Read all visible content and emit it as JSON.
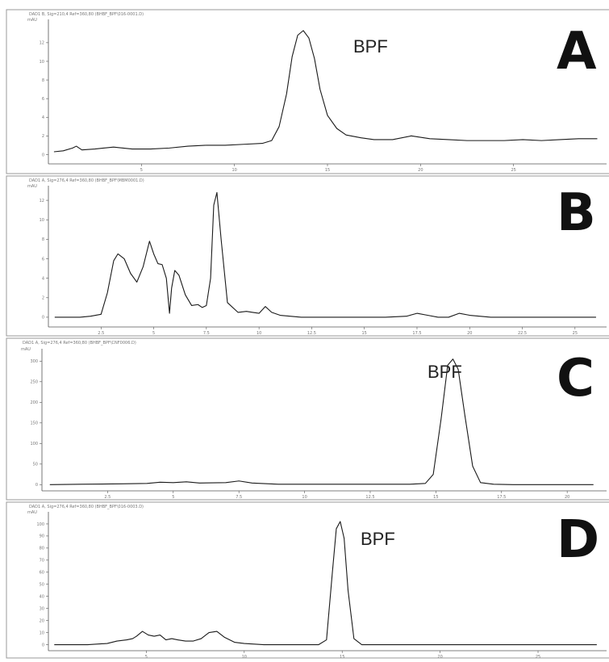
{
  "chart_data": [
    {
      "type": "line",
      "panel": "A",
      "header": "DAD1 B, Sig=210,4 Ref=360,80 (BHBF_BPF\\016-0001.D)",
      "ylabel": "mAU",
      "peak_label": "BPF",
      "peak_x": 13.7,
      "xlim": [
        0,
        30
      ],
      "ylim": [
        -1,
        14.5
      ],
      "xticks": [
        5,
        10,
        15,
        20,
        25
      ],
      "yticks": [
        0,
        2,
        4,
        6,
        8,
        10,
        12
      ],
      "series": [
        {
          "x": [
            0.3,
            0.8,
            1.3,
            1.5,
            1.8,
            2.5,
            3.5,
            4.5,
            5.5,
            6.5,
            7.5,
            8.5,
            9.5,
            10.5,
            11.5,
            12.0,
            12.4,
            12.8,
            13.1,
            13.4,
            13.7,
            14.0,
            14.3,
            14.6,
            15.0,
            15.5,
            16.0,
            16.8,
            17.5,
            18.5,
            19.5,
            20.5,
            21.5,
            22.5,
            23.5,
            24.5,
            25.5,
            26.5,
            27.5,
            28.5,
            29.5
          ],
          "y": [
            0.3,
            0.4,
            0.7,
            0.9,
            0.5,
            0.6,
            0.8,
            0.6,
            0.6,
            0.7,
            0.9,
            1.0,
            1.0,
            1.1,
            1.2,
            1.5,
            3.0,
            6.5,
            10.5,
            12.8,
            13.3,
            12.5,
            10.3,
            7.0,
            4.2,
            2.8,
            2.1,
            1.8,
            1.6,
            1.6,
            2.0,
            1.7,
            1.6,
            1.5,
            1.5,
            1.5,
            1.6,
            1.5,
            1.6,
            1.7,
            1.7
          ]
        }
      ]
    },
    {
      "type": "line",
      "panel": "B",
      "header": "DAD1 A, Sig=276,4 Ref=360,80 (BHBF_BPF\\MBM0001.D)",
      "ylabel": "mAU",
      "xlim": [
        0,
        26.5
      ],
      "ylim": [
        -1,
        13.5
      ],
      "xticks": [
        2.5,
        5,
        7.5,
        10,
        12.5,
        15,
        17.5,
        20,
        22.5,
        25
      ],
      "yticks": [
        0,
        2,
        4,
        6,
        8,
        10,
        12
      ],
      "series": [
        {
          "x": [
            0.3,
            1.0,
            1.5,
            2.0,
            2.5,
            2.8,
            3.1,
            3.3,
            3.6,
            3.9,
            4.2,
            4.5,
            4.8,
            5.0,
            5.2,
            5.4,
            5.6,
            5.75,
            5.85,
            6.0,
            6.2,
            6.5,
            6.8,
            7.1,
            7.3,
            7.5,
            7.7,
            7.85,
            8.0,
            8.2,
            8.5,
            9.0,
            9.4,
            9.7,
            10.0,
            10.3,
            10.6,
            11.0,
            12.0,
            13.0,
            14.0,
            15.0,
            16.0,
            17.0,
            17.5,
            18.0,
            18.5,
            19.0,
            19.5,
            20.0,
            21.0,
            22.0,
            23.0,
            24.0,
            25.0,
            26.0
          ],
          "y": [
            0.0,
            0.0,
            0.0,
            0.1,
            0.3,
            2.5,
            5.8,
            6.5,
            6.0,
            4.5,
            3.6,
            5.2,
            7.8,
            6.5,
            5.5,
            5.4,
            4.0,
            0.4,
            3.0,
            4.8,
            4.3,
            2.3,
            1.2,
            1.3,
            1.0,
            1.2,
            4.0,
            11.5,
            12.8,
            8.0,
            1.5,
            0.5,
            0.6,
            0.5,
            0.4,
            1.1,
            0.5,
            0.2,
            0.0,
            0.0,
            0.0,
            0.0,
            0.0,
            0.1,
            0.4,
            0.2,
            0.0,
            0.0,
            0.4,
            0.2,
            0.0,
            0.0,
            0.0,
            0.0,
            0.0,
            0.0
          ]
        }
      ]
    },
    {
      "type": "line",
      "panel": "C",
      "header": "DAD1 A, Sig=276,4 Ref=360,80 (BHBF_BPF\\CNF0006.D)",
      "ylabel": "mAU",
      "peak_label": "BPF",
      "peak_x": 15.65,
      "xlim": [
        0,
        21.5
      ],
      "ylim": [
        -15,
        330
      ],
      "xticks": [
        2.5,
        5,
        7.5,
        10,
        12.5,
        15,
        17.5,
        20
      ],
      "yticks": [
        0,
        50,
        100,
        150,
        200,
        250,
        300
      ],
      "series": [
        {
          "x": [
            0.3,
            1.5,
            3.0,
            4.0,
            4.5,
            5.0,
            5.5,
            6.0,
            7.0,
            7.5,
            8.0,
            9.0,
            10.0,
            11.0,
            12.0,
            13.0,
            14.0,
            14.6,
            14.9,
            15.2,
            15.45,
            15.65,
            15.85,
            16.1,
            16.4,
            16.7,
            17.2,
            18.0,
            19.0,
            20.0,
            21.0
          ],
          "y": [
            0,
            1,
            2,
            3,
            6,
            5,
            7,
            4,
            5,
            9,
            4,
            1,
            1,
            1,
            1,
            1,
            1,
            3,
            25,
            160,
            290,
            305,
            280,
            170,
            45,
            5,
            1,
            0,
            0,
            0,
            0
          ]
        }
      ]
    },
    {
      "type": "line",
      "panel": "D",
      "header": "DAD1 A, Sig=276,4 Ref=360,80 (BHBF_BPF\\016-0003.D)",
      "ylabel": "mAU",
      "peak_label": "BPF",
      "peak_x": 14.8,
      "xlim": [
        0,
        28.5
      ],
      "ylim": [
        -5,
        110
      ],
      "xticks": [
        5,
        10,
        15,
        20,
        25
      ],
      "yticks": [
        0,
        10,
        20,
        30,
        40,
        50,
        60,
        70,
        80,
        90,
        100
      ],
      "series": [
        {
          "x": [
            0.3,
            2.0,
            3.0,
            3.5,
            4.0,
            4.3,
            4.5,
            4.8,
            5.1,
            5.4,
            5.7,
            6.0,
            6.3,
            6.6,
            7.0,
            7.4,
            7.8,
            8.2,
            8.6,
            9.0,
            9.5,
            10.0,
            11.0,
            12.0,
            13.0,
            13.8,
            14.2,
            14.5,
            14.7,
            14.9,
            15.1,
            15.3,
            15.6,
            16.0,
            17.0,
            18.0,
            20.0,
            22.0,
            24.0,
            26.0,
            28.0
          ],
          "y": [
            0,
            0,
            1,
            3,
            4,
            5,
            7,
            11,
            8,
            7,
            8,
            4,
            5,
            4,
            3,
            3,
            5,
            10,
            11,
            6,
            2,
            1,
            0,
            0,
            0,
            0,
            4,
            60,
            96,
            102,
            88,
            45,
            5,
            0,
            0,
            0,
            0,
            0,
            0,
            0,
            0
          ]
        }
      ]
    }
  ]
}
